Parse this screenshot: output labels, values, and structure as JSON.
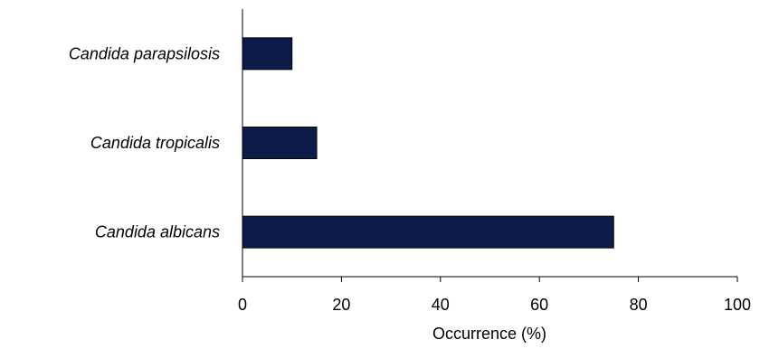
{
  "chart_data": {
    "type": "bar",
    "orientation": "horizontal",
    "categories": [
      "Candida parapsilosis",
      "Candida tropicalis",
      "Candida albicans"
    ],
    "values": [
      10,
      15,
      75
    ],
    "xlabel": "Occurrence (%)",
    "ylabel": "",
    "xlim": [
      0,
      100
    ],
    "xticks": [
      0,
      20,
      40,
      60,
      80,
      100
    ],
    "bar_color": "#0d1b4b",
    "grid": false,
    "legend": "none"
  }
}
